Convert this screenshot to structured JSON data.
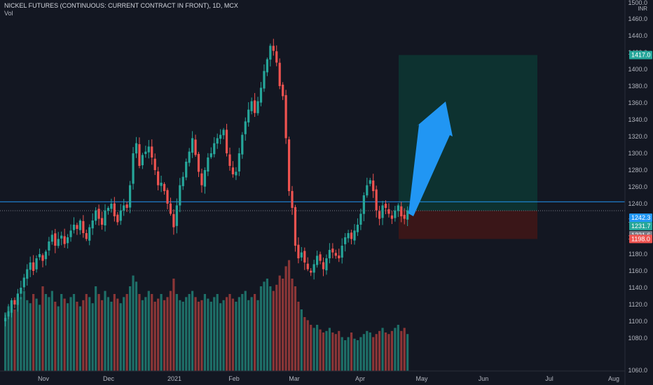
{
  "header": {
    "title": "NICKEL FUTURES (CONTINUOUS: CURRENT CONTRACT IN FRONT), 1D, MCX",
    "volume_label": "Vol"
  },
  "colors": {
    "background": "#131722",
    "up": "#26a69a",
    "down": "#ef5350",
    "up_volume": "#1e6f68",
    "down_volume": "#8b3637",
    "profit_zone": "#0d3230",
    "loss_zone": "#3a1618",
    "horizontal_line": "#2196f3",
    "arrow": "#2196f3",
    "axis_text": "#b2b5be"
  },
  "chart_data": {
    "type": "candlestick",
    "title": "NICKEL FUTURES (CONTINUOUS: CURRENT CONTRACT IN FRONT), 1D, MCX",
    "y_unit": "INR",
    "ylim": [
      1060,
      1500
    ],
    "y_ticks": [
      "1500.0",
      "1460.0",
      "1440.0",
      "1420.0",
      "1400.0",
      "1380.0",
      "1360.0",
      "1340.0",
      "1320.0",
      "1300.0",
      "1280.0",
      "1260.0",
      "1240.0",
      "1220.0",
      "1200.0",
      "1180.0",
      "1160.0",
      "1140.0",
      "1120.0",
      "1100.0",
      "1080.0",
      "1060.0"
    ],
    "x_ticks": [
      "Nov",
      "Dec",
      "2021",
      "Feb",
      "Mar",
      "Apr",
      "May",
      "Jun",
      "Jul",
      "Aug"
    ],
    "price_labels": [
      {
        "text": "1417.0",
        "value": 1417.0,
        "color": "#26a69a"
      },
      {
        "text": "1242.3",
        "value": 1242.3,
        "color": "#2196f3"
      },
      {
        "text": "1231.7",
        "value": 1231.7,
        "color": "#26a69a"
      },
      {
        "text": "1231.6",
        "value": 1231.6,
        "color": "#787b86"
      },
      {
        "text": "1198.0",
        "value": 1198.0,
        "color": "#ef5350"
      }
    ],
    "position": {
      "entry": 1231.7,
      "target": 1417.0,
      "stop": 1198.0
    },
    "horizontal_line": 1242.3,
    "closes": [
      1104,
      1112,
      1125,
      1120,
      1133,
      1140,
      1152,
      1162,
      1170,
      1160,
      1175,
      1180,
      1172,
      1183,
      1195,
      1203,
      1190,
      1198,
      1202,
      1192,
      1200,
      1208,
      1215,
      1210,
      1220,
      1205,
      1198,
      1212,
      1220,
      1232,
      1222,
      1215,
      1232,
      1235,
      1240,
      1225,
      1218,
      1232,
      1238,
      1235,
      1262,
      1300,
      1312,
      1285,
      1298,
      1302,
      1308,
      1295,
      1280,
      1262,
      1265,
      1255,
      1240,
      1228,
      1212,
      1238,
      1262,
      1272,
      1290,
      1302,
      1318,
      1298,
      1278,
      1262,
      1280,
      1295,
      1300,
      1312,
      1318,
      1322,
      1328,
      1300,
      1285,
      1275,
      1278,
      1300,
      1322,
      1338,
      1352,
      1362,
      1348,
      1362,
      1378,
      1398,
      1412,
      1428,
      1422,
      1408,
      1380,
      1368,
      1318,
      1255,
      1235,
      1190,
      1175,
      1182,
      1170,
      1162,
      1158,
      1168,
      1178,
      1172,
      1162,
      1175,
      1185,
      1182,
      1178,
      1175,
      1190,
      1200,
      1205,
      1198,
      1208,
      1215,
      1228,
      1250,
      1262,
      1268,
      1255,
      1232,
      1222,
      1238,
      1235,
      1228,
      1222,
      1232,
      1238,
      1225,
      1222,
      1232
    ],
    "volumes": [
      0.38,
      0.42,
      0.45,
      0.4,
      0.5,
      0.48,
      0.52,
      0.46,
      0.44,
      0.5,
      0.47,
      0.43,
      0.55,
      0.5,
      0.48,
      0.52,
      0.45,
      0.42,
      0.5,
      0.47,
      0.44,
      0.48,
      0.5,
      0.45,
      0.42,
      0.46,
      0.5,
      0.48,
      0.44,
      0.55,
      0.5,
      0.46,
      0.52,
      0.48,
      0.45,
      0.5,
      0.47,
      0.44,
      0.48,
      0.5,
      0.55,
      0.62,
      0.58,
      0.5,
      0.46,
      0.48,
      0.52,
      0.5,
      0.45,
      0.47,
      0.5,
      0.46,
      0.48,
      0.52,
      0.6,
      0.5,
      0.46,
      0.45,
      0.48,
      0.5,
      0.52,
      0.48,
      0.45,
      0.46,
      0.5,
      0.47,
      0.45,
      0.48,
      0.5,
      0.44,
      0.46,
      0.48,
      0.5,
      0.47,
      0.45,
      0.48,
      0.5,
      0.52,
      0.46,
      0.48,
      0.5,
      0.46,
      0.55,
      0.58,
      0.6,
      0.55,
      0.52,
      0.56,
      0.62,
      0.6,
      0.68,
      0.72,
      0.6,
      0.55,
      0.45,
      0.4,
      0.35,
      0.33,
      0.3,
      0.28,
      0.3,
      0.27,
      0.25,
      0.26,
      0.28,
      0.25,
      0.24,
      0.26,
      0.22,
      0.2,
      0.22,
      0.25,
      0.21,
      0.2,
      0.22,
      0.24,
      0.26,
      0.25,
      0.22,
      0.24,
      0.26,
      0.28,
      0.25,
      0.24,
      0.26,
      0.28,
      0.3,
      0.26,
      0.28,
      0.24
    ]
  }
}
